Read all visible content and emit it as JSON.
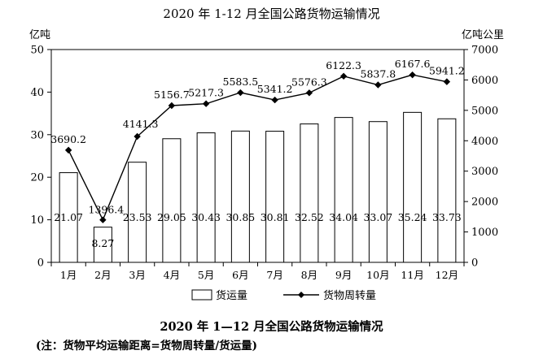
{
  "chart_data": {
    "type": "bar",
    "title": "2020 年 1-12 月全国公路货物运输情况",
    "caption": "2020 年 1—12 月全国公路货物运输情况",
    "note": "(注：货物平均运输距离=货物周转量/货运量)",
    "categories": [
      "1月",
      "2月",
      "3月",
      "4月",
      "5月",
      "6月",
      "7月",
      "8月",
      "9月",
      "10月",
      "11月",
      "12月"
    ],
    "series": [
      {
        "name": "货运量",
        "type": "bar",
        "axis": "left",
        "values": [
          21.07,
          8.27,
          23.53,
          29.05,
          30.43,
          30.85,
          30.81,
          32.52,
          34.04,
          33.07,
          35.24,
          33.73
        ],
        "labels": [
          "21.07",
          "8.27",
          "23.53",
          "29.05",
          "30.43",
          "30.85",
          "30.81",
          "32.52",
          "34.04",
          "33.07",
          "35.24",
          "33.73"
        ]
      },
      {
        "name": "货物周转量",
        "type": "line",
        "axis": "right",
        "values": [
          3690.2,
          1396.4,
          4141.3,
          5156.7,
          5217.3,
          5583.5,
          5341.2,
          5576.3,
          6122.3,
          5837.8,
          6167.6,
          5941.2
        ],
        "labels": [
          "3690.2",
          "1396.4",
          "4141.3",
          "5156.7",
          "5217.3",
          "5583.5",
          "5341.2",
          "5576.3",
          "6122.3",
          "5837.8",
          "6167.6",
          "5941.2"
        ]
      }
    ],
    "y_left": {
      "unit": "亿吨",
      "lim": [
        0,
        50
      ],
      "ticks": [
        "0",
        "10",
        "20",
        "30",
        "40",
        "50"
      ]
    },
    "y_right": {
      "unit": "亿吨公里",
      "lim": [
        0,
        7000
      ],
      "ticks": [
        "0",
        "1000",
        "2000",
        "3000",
        "4000",
        "5000",
        "6000",
        "7000"
      ]
    },
    "legend": {
      "placement": "bottom",
      "items": [
        "货运量",
        "货物周转量"
      ]
    },
    "grid": false,
    "colors": {
      "bar_fill": "#ffffff",
      "bar_stroke": "#000000",
      "line": "#000000"
    }
  }
}
